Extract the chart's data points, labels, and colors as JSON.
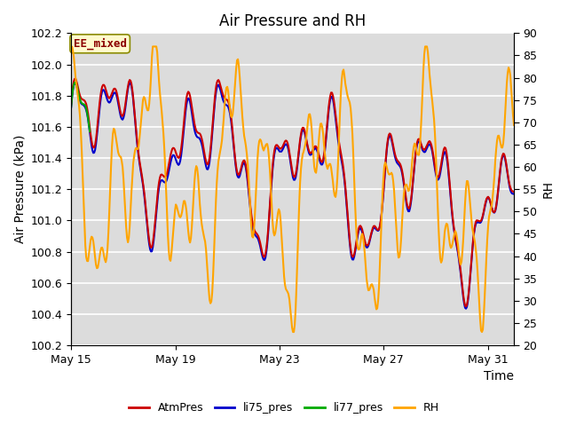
{
  "title": "Air Pressure and RH",
  "xlabel": "Time",
  "ylabel_left": "Air Pressure (kPa)",
  "ylabel_right": "RH",
  "ylim_left": [
    100.2,
    102.2
  ],
  "ylim_right": [
    20,
    90
  ],
  "yticks_left": [
    100.2,
    100.4,
    100.6,
    100.8,
    101.0,
    101.2,
    101.4,
    101.6,
    101.8,
    102.0,
    102.2
  ],
  "yticks_right": [
    20,
    25,
    30,
    35,
    40,
    45,
    50,
    55,
    60,
    65,
    70,
    75,
    80,
    85,
    90
  ],
  "xtick_labels": [
    "May 15",
    "May 19",
    "May 23",
    "May 27",
    "May 31"
  ],
  "xtick_positions": [
    0,
    4,
    8,
    12,
    16
  ],
  "annotation_text": "EE_mixed",
  "annotation_color": "#8B0000",
  "annotation_bg": "#FFFACD",
  "annotation_border": "#8B8B00",
  "bg_color": "#DCDCDC",
  "grid_color": "#FFFFFF",
  "line_colors": {
    "AtmPres": "#CC0000",
    "li75_pres": "#0000CC",
    "li77_pres": "#00AA00",
    "RH": "#FFA500"
  },
  "line_widths": {
    "AtmPres": 1.5,
    "li75_pres": 1.5,
    "li77_pres": 1.5,
    "RH": 1.5
  },
  "legend_labels": [
    "AtmPres",
    "li75_pres",
    "li77_pres",
    "RH"
  ],
  "title_fontsize": 12,
  "axis_label_fontsize": 10,
  "tick_fontsize": 9,
  "legend_fontsize": 9,
  "figsize": [
    6.4,
    4.8
  ],
  "dpi": 100
}
